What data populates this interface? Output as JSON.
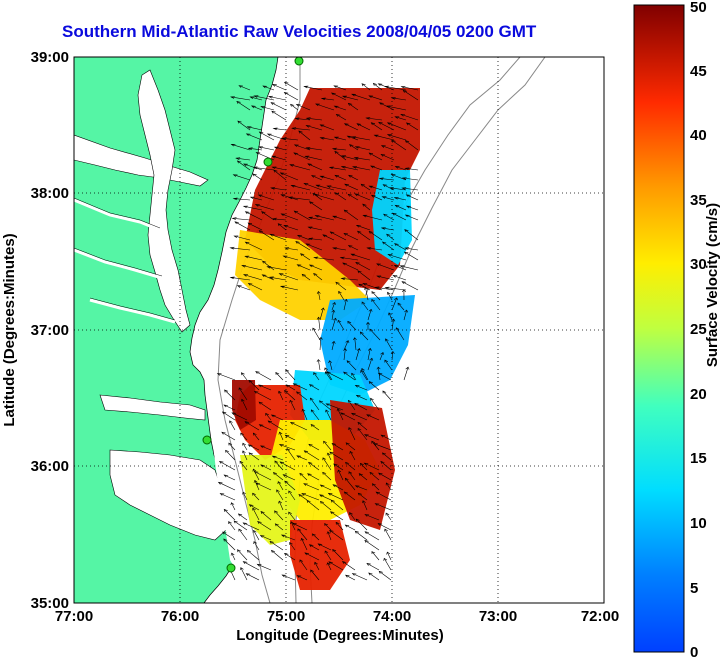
{
  "title": "Southern Mid-Atlantic Raw Velocities 2008/04/05 0200 GMT",
  "map": {
    "x_axis": {
      "label": "Longitude (Degrees:Minutes)",
      "ticks": [
        "77:00",
        "76:00",
        "75:00",
        "74:00",
        "73:00",
        "72:00"
      ]
    },
    "y_axis": {
      "label": "Latitude (Degrees:Minutes)",
      "ticks": [
        "39:00",
        "38:00",
        "37:00",
        "36:00",
        "35:00"
      ]
    },
    "lon_range": [
      -77,
      -72
    ],
    "lat_range": [
      35,
      39
    ],
    "land_color": "#55f5a5",
    "grid": "dotted"
  },
  "colorbar": {
    "label": "Surface Velocity (cm/s)",
    "ticks": [
      "0",
      "5",
      "10",
      "15",
      "20",
      "25",
      "30",
      "35",
      "40",
      "45",
      "50"
    ],
    "range": [
      0,
      50
    ],
    "colormap": "jet"
  }
}
